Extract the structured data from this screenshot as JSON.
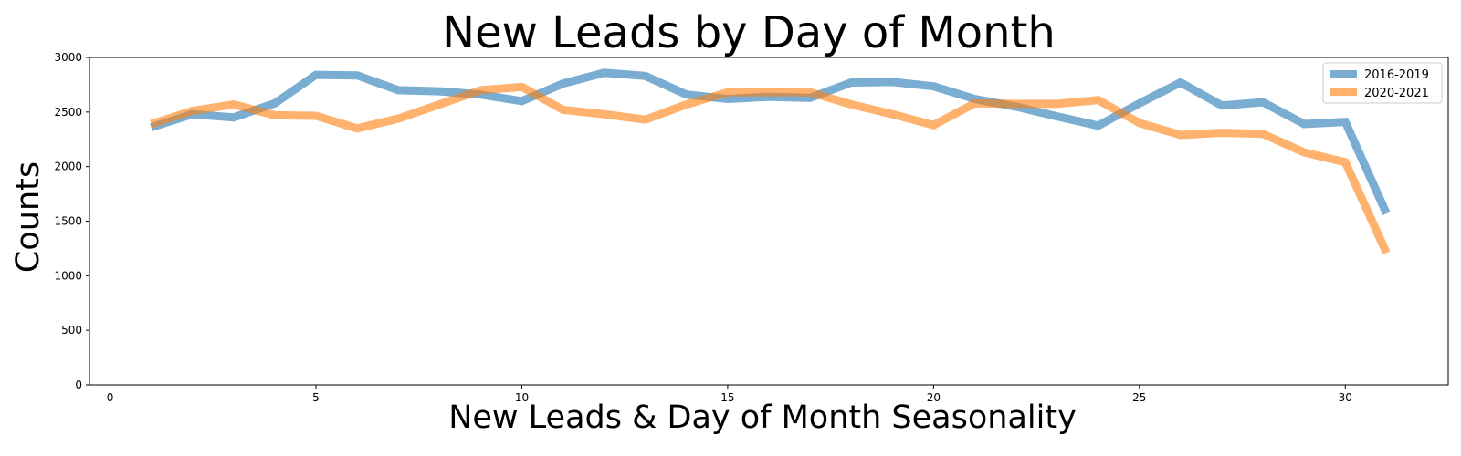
{
  "chart_data": {
    "type": "line",
    "title": "New Leads by Day of Month",
    "xlabel": "New Leads & Day of Month Seasonality",
    "ylabel": "Counts",
    "xlim": [
      -0.5,
      32.5
    ],
    "ylim": [
      0,
      3000
    ],
    "xticks": [
      0,
      5,
      10,
      15,
      20,
      25,
      30
    ],
    "yticks": [
      0,
      500,
      1000,
      1500,
      2000,
      2500,
      3000
    ],
    "grid": false,
    "legend_position": "top-right",
    "x": [
      1,
      2,
      3,
      4,
      5,
      6,
      7,
      8,
      9,
      10,
      11,
      12,
      13,
      14,
      15,
      16,
      17,
      18,
      19,
      20,
      21,
      22,
      23,
      24,
      25,
      26,
      27,
      28,
      29,
      30,
      31
    ],
    "series": [
      {
        "name": "2016-2019",
        "color": "#1f77b4",
        "values": [
          2360,
          2480,
          2450,
          2580,
          2840,
          2835,
          2700,
          2690,
          2660,
          2600,
          2760,
          2860,
          2830,
          2660,
          2620,
          2640,
          2630,
          2770,
          2775,
          2735,
          2620,
          2550,
          2460,
          2375,
          2580,
          2770,
          2560,
          2590,
          2390,
          2410,
          1570
        ]
      },
      {
        "name": "2020-2021",
        "color": "#ff7f0e",
        "values": [
          2390,
          2510,
          2570,
          2470,
          2465,
          2350,
          2440,
          2570,
          2700,
          2730,
          2520,
          2480,
          2430,
          2570,
          2680,
          2680,
          2680,
          2570,
          2480,
          2380,
          2580,
          2575,
          2575,
          2610,
          2400,
          2290,
          2310,
          2300,
          2130,
          2040,
          1210
        ]
      }
    ]
  }
}
